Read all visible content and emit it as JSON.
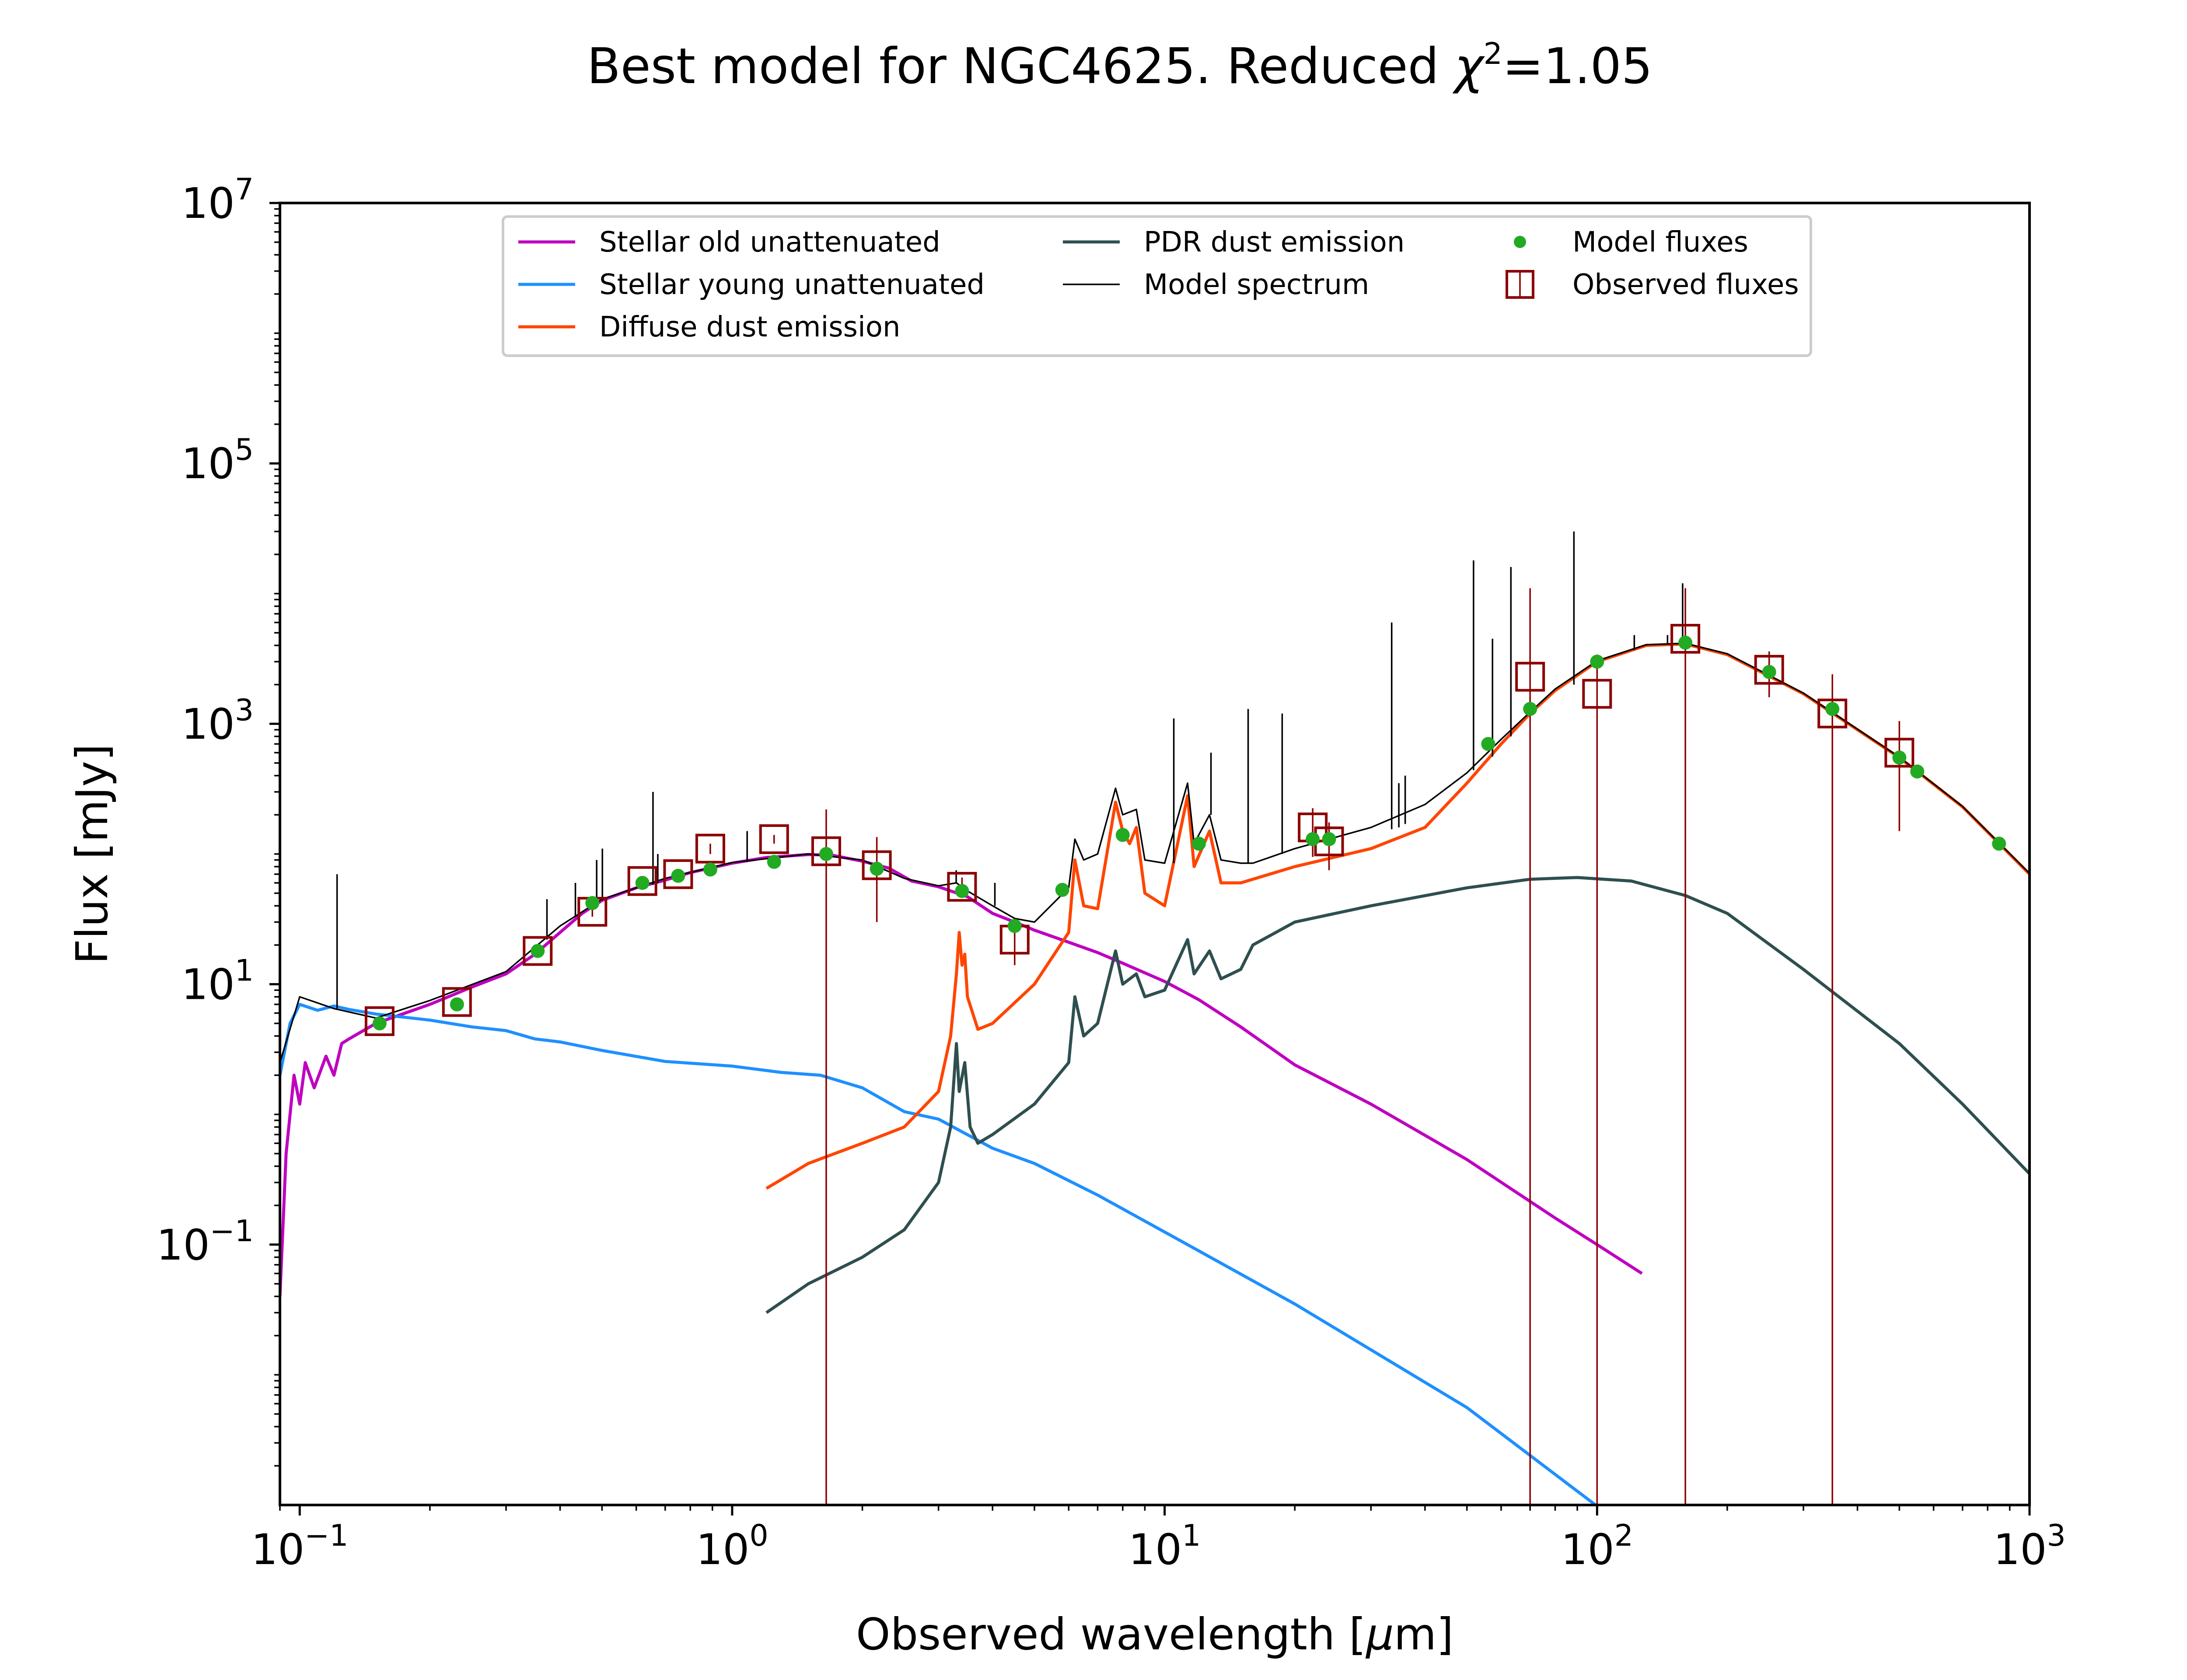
{
  "figure": {
    "title_prefix": "Best model for NGC4625. Reduced ",
    "title_chi": "χ",
    "title_sup": "2",
    "title_suffix": "=1.05"
  },
  "chart_data": {
    "type": "line",
    "title": "Best model for NGC4625. Reduced χ²=1.05",
    "xlabel": "Observed wavelength [μm]",
    "xlabel_prefix": "Observed wavelength [",
    "xlabel_mu": "μ",
    "xlabel_suffix": "m]",
    "ylabel": "Flux [mJy]",
    "xscale": "log",
    "yscale": "log",
    "xlim": [
      0.09,
      1000
    ],
    "ylim": [
      0.001,
      10000000
    ],
    "x_ticks": [
      {
        "value": 0.1,
        "base": "10",
        "exp": "−1"
      },
      {
        "value": 1,
        "base": "10",
        "exp": "0"
      },
      {
        "value": 10,
        "base": "10",
        "exp": "1"
      },
      {
        "value": 100,
        "base": "10",
        "exp": "2"
      },
      {
        "value": 1000,
        "base": "10",
        "exp": "3"
      }
    ],
    "y_ticks": [
      {
        "value": 0.1,
        "base": "10",
        "exp": "−1"
      },
      {
        "value": 10,
        "base": "10",
        "exp": "1"
      },
      {
        "value": 1000,
        "base": "10",
        "exp": "3"
      },
      {
        "value": 100000,
        "base": "10",
        "exp": "5"
      },
      {
        "value": 10000000,
        "base": "10",
        "exp": "7"
      }
    ],
    "grid": false,
    "legend_position": "top-center",
    "legend": [
      {
        "label": "Stellar old unattenuated",
        "color": "#bf00bf",
        "kind": "line"
      },
      {
        "label": "Stellar young unattenuated",
        "color": "#1e90ff",
        "kind": "line"
      },
      {
        "label": "Diffuse dust emission",
        "color": "#ff4500",
        "kind": "line"
      },
      {
        "label": "PDR dust emission",
        "color": "#2f4f4f",
        "kind": "line"
      },
      {
        "label": "Model spectrum",
        "color": "#000000",
        "kind": "thinline"
      },
      {
        "label": "Model fluxes",
        "color": "#22aa22",
        "kind": "dot"
      },
      {
        "label": "Observed fluxes",
        "color": "#8b0000",
        "kind": "square"
      }
    ],
    "series": [
      {
        "name": "Stellar old unattenuated",
        "color": "#bf00bf",
        "points": [
          [
            0.09,
            0.04
          ],
          [
            0.093,
            0.5
          ],
          [
            0.097,
            2.0
          ],
          [
            0.1,
            1.2
          ],
          [
            0.103,
            2.5
          ],
          [
            0.108,
            1.6
          ],
          [
            0.115,
            2.8
          ],
          [
            0.12,
            2.0
          ],
          [
            0.125,
            3.5
          ],
          [
            0.13,
            3.8
          ],
          [
            0.15,
            5
          ],
          [
            0.2,
            7
          ],
          [
            0.25,
            9.5
          ],
          [
            0.3,
            12
          ],
          [
            0.35,
            17
          ],
          [
            0.4,
            25
          ],
          [
            0.45,
            35
          ],
          [
            0.5,
            44
          ],
          [
            0.6,
            55
          ],
          [
            0.7,
            63
          ],
          [
            0.8,
            72
          ],
          [
            1.0,
            85
          ],
          [
            1.2,
            94
          ],
          [
            1.5,
            99
          ],
          [
            1.7,
            98
          ],
          [
            2.0,
            88
          ],
          [
            2.3,
            78
          ],
          [
            2.6,
            62
          ],
          [
            3.0,
            56
          ],
          [
            3.5,
            47
          ],
          [
            4.0,
            35
          ],
          [
            4.5,
            30
          ],
          [
            5.0,
            26
          ],
          [
            6.0,
            21
          ],
          [
            7.0,
            17.5
          ],
          [
            8.0,
            14.5
          ],
          [
            10,
            10.5
          ],
          [
            12,
            7.6
          ],
          [
            15,
            4.7
          ],
          [
            20,
            2.4
          ],
          [
            30,
            1.2
          ],
          [
            50,
            0.45
          ],
          [
            80,
            0.16
          ],
          [
            100,
            0.1
          ],
          [
            127,
            0.06
          ]
        ]
      },
      {
        "name": "Stellar young unattenuated",
        "color": "#1e90ff",
        "points": [
          [
            0.09,
            2
          ],
          [
            0.095,
            5
          ],
          [
            0.1,
            7
          ],
          [
            0.11,
            6.3
          ],
          [
            0.12,
            6.8
          ],
          [
            0.13,
            6.4
          ],
          [
            0.15,
            5.9
          ],
          [
            0.2,
            5.3
          ],
          [
            0.25,
            4.7
          ],
          [
            0.3,
            4.4
          ],
          [
            0.35,
            3.8
          ],
          [
            0.4,
            3.6
          ],
          [
            0.5,
            3.1
          ],
          [
            0.7,
            2.55
          ],
          [
            1.0,
            2.35
          ],
          [
            1.3,
            2.1
          ],
          [
            1.6,
            2.0
          ],
          [
            2.0,
            1.6
          ],
          [
            2.5,
            1.05
          ],
          [
            3.0,
            0.92
          ],
          [
            4.0,
            0.55
          ],
          [
            5.0,
            0.42
          ],
          [
            7.0,
            0.24
          ],
          [
            10,
            0.125
          ],
          [
            20,
            0.035
          ],
          [
            50,
            0.0056
          ],
          [
            100,
            0.00098
          ]
        ]
      },
      {
        "name": "Diffuse dust emission",
        "color": "#ff4500",
        "points": [
          [
            1.2,
            0.27
          ],
          [
            1.5,
            0.42
          ],
          [
            2.0,
            0.6
          ],
          [
            2.5,
            0.8
          ],
          [
            3.0,
            1.5
          ],
          [
            3.2,
            4
          ],
          [
            3.3,
            12
          ],
          [
            3.35,
            25
          ],
          [
            3.4,
            14
          ],
          [
            3.45,
            17
          ],
          [
            3.5,
            8
          ],
          [
            3.7,
            4.5
          ],
          [
            4.0,
            5
          ],
          [
            5.0,
            10
          ],
          [
            6.0,
            25
          ],
          [
            6.2,
            90
          ],
          [
            6.5,
            40
          ],
          [
            7.0,
            38
          ],
          [
            7.7,
            250
          ],
          [
            8.0,
            150
          ],
          [
            8.3,
            120
          ],
          [
            8.6,
            160
          ],
          [
            9.0,
            50
          ],
          [
            10,
            40
          ],
          [
            11.3,
            280
          ],
          [
            11.7,
            80
          ],
          [
            12.7,
            150
          ],
          [
            13.5,
            60
          ],
          [
            15,
            60
          ],
          [
            20,
            80
          ],
          [
            30,
            110
          ],
          [
            40,
            160
          ],
          [
            50,
            350
          ],
          [
            60,
            700
          ],
          [
            70,
            1200
          ],
          [
            80,
            1800
          ],
          [
            100,
            3000
          ],
          [
            130,
            4000
          ],
          [
            160,
            4100
          ],
          [
            200,
            3400
          ],
          [
            300,
            1700
          ],
          [
            500,
            550
          ],
          [
            700,
            230
          ],
          [
            1000,
            70
          ]
        ]
      },
      {
        "name": "PDR dust emission",
        "color": "#2f4f4f",
        "points": [
          [
            1.2,
            0.03
          ],
          [
            1.5,
            0.05
          ],
          [
            2.0,
            0.08
          ],
          [
            2.5,
            0.13
          ],
          [
            3.0,
            0.3
          ],
          [
            3.2,
            0.8
          ],
          [
            3.3,
            3.5
          ],
          [
            3.35,
            1.5
          ],
          [
            3.45,
            2.5
          ],
          [
            3.55,
            0.8
          ],
          [
            3.7,
            0.6
          ],
          [
            4.0,
            0.7
          ],
          [
            5.0,
            1.2
          ],
          [
            6.0,
            2.5
          ],
          [
            6.2,
            8
          ],
          [
            6.5,
            4
          ],
          [
            7.0,
            5
          ],
          [
            7.7,
            18
          ],
          [
            8.0,
            10
          ],
          [
            8.6,
            12
          ],
          [
            9.0,
            8
          ],
          [
            10,
            9
          ],
          [
            11.3,
            22
          ],
          [
            11.7,
            12
          ],
          [
            12.7,
            18
          ],
          [
            13.5,
            11
          ],
          [
            15,
            13
          ],
          [
            16,
            20
          ],
          [
            20,
            30
          ],
          [
            30,
            40
          ],
          [
            50,
            55
          ],
          [
            70,
            64
          ],
          [
            90,
            66
          ],
          [
            120,
            62
          ],
          [
            160,
            48
          ],
          [
            200,
            35
          ],
          [
            300,
            13
          ],
          [
            500,
            3.5
          ],
          [
            700,
            1.2
          ],
          [
            1000,
            0.35
          ]
        ]
      },
      {
        "name": "Model spectrum",
        "color": "#000000",
        "points": [
          [
            0.09,
            2.5
          ],
          [
            0.1,
            8
          ],
          [
            0.12,
            6.5
          ],
          [
            0.15,
            5.5
          ],
          [
            0.2,
            7.5
          ],
          [
            0.3,
            12.5
          ],
          [
            0.4,
            28
          ],
          [
            0.5,
            45
          ],
          [
            0.7,
            65
          ],
          [
            1.0,
            86
          ],
          [
            1.5,
            100
          ],
          [
            2.0,
            90
          ],
          [
            2.5,
            65
          ],
          [
            3.0,
            57
          ],
          [
            3.3,
            60
          ],
          [
            3.5,
            52
          ],
          [
            4.0,
            40
          ],
          [
            4.5,
            32
          ],
          [
            5.0,
            30
          ],
          [
            6.0,
            55
          ],
          [
            6.2,
            130
          ],
          [
            6.5,
            90
          ],
          [
            7.0,
            100
          ],
          [
            7.7,
            320
          ],
          [
            8.0,
            200
          ],
          [
            8.6,
            220
          ],
          [
            9.0,
            90
          ],
          [
            10,
            85
          ],
          [
            11.3,
            350
          ],
          [
            11.7,
            120
          ],
          [
            12.7,
            200
          ],
          [
            13.5,
            90
          ],
          [
            15,
            85
          ],
          [
            16,
            85
          ],
          [
            20,
            110
          ],
          [
            30,
            160
          ],
          [
            40,
            240
          ],
          [
            50,
            420
          ],
          [
            60,
            760
          ],
          [
            70,
            1230
          ],
          [
            80,
            1850
          ],
          [
            100,
            3050
          ],
          [
            130,
            4050
          ],
          [
            160,
            4150
          ],
          [
            200,
            3450
          ],
          [
            300,
            1720
          ],
          [
            500,
            555
          ],
          [
            700,
            232
          ],
          [
            1000,
            71
          ]
        ]
      }
    ],
    "emission_lines": [
      {
        "x": 0.122,
        "peak": 70,
        "base": 6.5
      },
      {
        "x": 0.373,
        "peak": 45,
        "base": 22
      },
      {
        "x": 0.434,
        "peak": 60,
        "base": 33
      },
      {
        "x": 0.486,
        "peak": 90,
        "base": 42
      },
      {
        "x": 0.501,
        "peak": 110,
        "base": 44
      },
      {
        "x": 0.656,
        "peak": 300,
        "base": 58
      },
      {
        "x": 0.673,
        "peak": 100,
        "base": 60
      },
      {
        "x": 1.083,
        "peak": 150,
        "base": 87
      },
      {
        "x": 3.296,
        "peak": 75,
        "base": 60
      },
      {
        "x": 4.05,
        "peak": 60,
        "base": 40
      },
      {
        "x": 10.5,
        "peak": 1100,
        "base": 85
      },
      {
        "x": 12.8,
        "peak": 600,
        "base": 200
      },
      {
        "x": 15.6,
        "peak": 1300,
        "base": 85
      },
      {
        "x": 18.7,
        "peak": 1200,
        "base": 100
      },
      {
        "x": 33.5,
        "peak": 6000,
        "base": 155
      },
      {
        "x": 34.8,
        "peak": 350,
        "base": 160
      },
      {
        "x": 36.0,
        "peak": 400,
        "base": 170
      },
      {
        "x": 51.8,
        "peak": 18000,
        "base": 440
      },
      {
        "x": 57.3,
        "peak": 4500,
        "base": 560
      },
      {
        "x": 63.2,
        "peak": 16000,
        "base": 800
      },
      {
        "x": 88.4,
        "peak": 30000,
        "base": 2000
      },
      {
        "x": 121.9,
        "peak": 4800,
        "base": 3700
      },
      {
        "x": 145.5,
        "peak": 4800,
        "base": 4100
      },
      {
        "x": 157.7,
        "peak": 12000,
        "base": 4150
      }
    ],
    "model_fluxes": [
      [
        0.153,
        5
      ],
      [
        0.231,
        7
      ],
      [
        0.355,
        18
      ],
      [
        0.475,
        42
      ],
      [
        0.62,
        60
      ],
      [
        0.75,
        68
      ],
      [
        0.89,
        76
      ],
      [
        1.25,
        87
      ],
      [
        1.65,
        100
      ],
      [
        2.16,
        77
      ],
      [
        3.4,
        52
      ],
      [
        4.5,
        28
      ],
      [
        5.8,
        53
      ],
      [
        8.0,
        140
      ],
      [
        12,
        120
      ],
      [
        22,
        130
      ],
      [
        24,
        130
      ],
      [
        56,
        700
      ],
      [
        70,
        1300
      ],
      [
        100,
        3000
      ],
      [
        160,
        4200
      ],
      [
        250,
        2500
      ],
      [
        350,
        1300
      ],
      [
        500,
        550
      ],
      [
        550,
        430
      ],
      [
        850,
        120
      ]
    ],
    "observed_fluxes": [
      {
        "x": 0.153,
        "y": 5.2,
        "lo": 4.8,
        "hi": 5.6
      },
      {
        "x": 0.231,
        "y": 7.3,
        "lo": 6.7,
        "hi": 7.9
      },
      {
        "x": 0.355,
        "y": 18,
        "lo": 16,
        "hi": 20
      },
      {
        "x": 0.475,
        "y": 36,
        "lo": 33,
        "hi": 39
      },
      {
        "x": 0.62,
        "y": 62,
        "lo": 57,
        "hi": 67
      },
      {
        "x": 0.75,
        "y": 70,
        "lo": 64,
        "hi": 76
      },
      {
        "x": 0.89,
        "y": 110,
        "lo": 100,
        "hi": 120
      },
      {
        "x": 1.25,
        "y": 130,
        "lo": 120,
        "hi": 140
      },
      {
        "x": 1.65,
        "y": 105,
        "lo": 0.001,
        "hi": 220
      },
      {
        "x": 2.16,
        "y": 82,
        "lo": 30,
        "hi": 135
      },
      {
        "x": 3.4,
        "y": 56,
        "lo": 46,
        "hi": 66
      },
      {
        "x": 4.5,
        "y": 22,
        "lo": 14,
        "hi": 30
      },
      {
        "x": 22,
        "y": 160,
        "lo": 95,
        "hi": 225
      },
      {
        "x": 24,
        "y": 125,
        "lo": 75,
        "hi": 175
      },
      {
        "x": 70,
        "y": 2300,
        "lo": 0.001,
        "hi": 11000
      },
      {
        "x": 100,
        "y": 1700,
        "lo": 0.001,
        "hi": 3400
      },
      {
        "x": 160,
        "y": 4500,
        "lo": 0.001,
        "hi": 11000
      },
      {
        "x": 250,
        "y": 2600,
        "lo": 1600,
        "hi": 3600
      },
      {
        "x": 350,
        "y": 1200,
        "lo": 0.001,
        "hi": 2400
      },
      {
        "x": 500,
        "y": 600,
        "lo": 150,
        "hi": 1050
      }
    ]
  }
}
